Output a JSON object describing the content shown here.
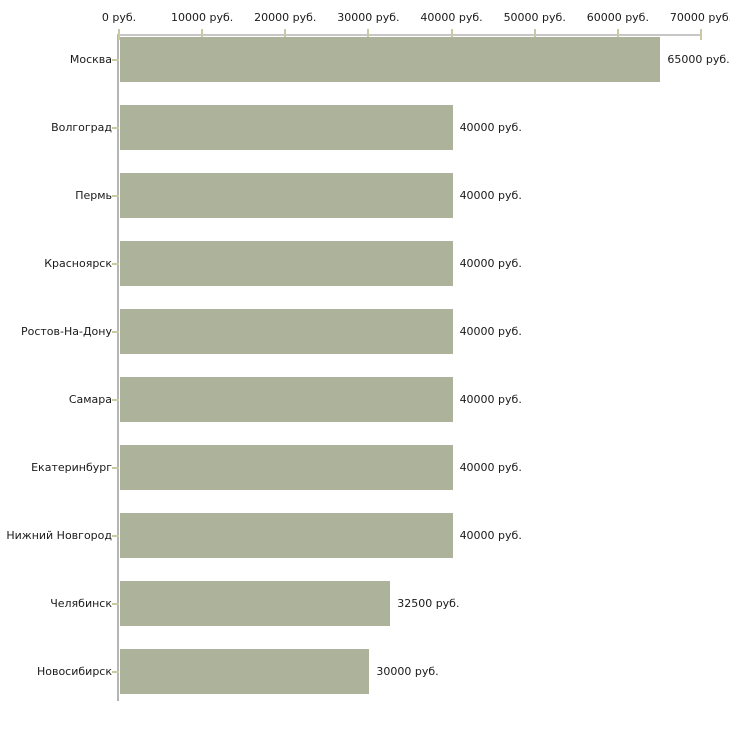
{
  "chart_data": {
    "type": "bar",
    "orientation": "horizontal",
    "title": "",
    "xlabel": "",
    "ylabel": "",
    "unit": "руб.",
    "grid": false,
    "legend": null,
    "xlim": [
      0,
      70000
    ],
    "x_ticks": [
      0,
      10000,
      20000,
      30000,
      40000,
      50000,
      60000,
      70000
    ],
    "x_tick_labels": [
      "0 руб.",
      "10000 руб.",
      "20000 руб.",
      "30000 руб.",
      "40000 руб.",
      "50000 руб.",
      "60000 руб.",
      "70000 руб."
    ],
    "categories": [
      "Москва",
      "Волгоград",
      "Пермь",
      "Красноярск",
      "Ростов-На-Дону",
      "Самара",
      "Екатеринбург",
      "Нижний Новгород",
      "Челябинск",
      "Новосибирск"
    ],
    "values": [
      65000,
      40000,
      40000,
      40000,
      40000,
      40000,
      40000,
      40000,
      32500,
      30000
    ],
    "value_labels": [
      "65000 руб.",
      "40000 руб.",
      "40000 руб.",
      "40000 руб.",
      "40000 руб.",
      "40000 руб.",
      "40000 руб.",
      "40000 руб.",
      "32500 руб.",
      "30000 руб."
    ],
    "colors": {
      "bar": "#adb39a",
      "axis_line": "#c6c6c6",
      "axis_line_vertical": "#b5b5b5",
      "tick": "#c9c9a3",
      "text": "#1a1a1a",
      "background": "#ffffff"
    }
  }
}
